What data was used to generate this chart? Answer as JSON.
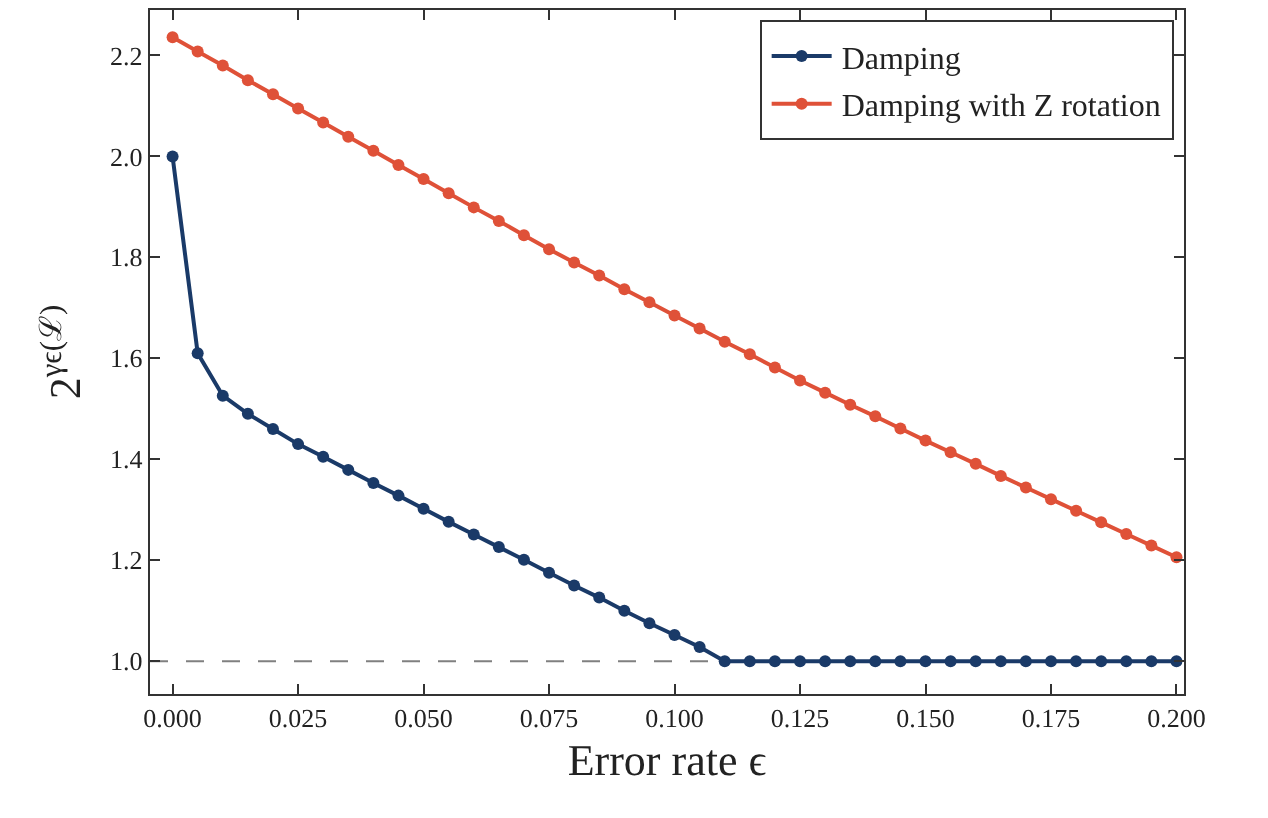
{
  "chart_data": {
    "type": "line",
    "xlabel": "Error rate ϵ",
    "ylabel": "2$^{γϵ(ℒ)}$",
    "x": [
      0,
      0.005,
      0.01,
      0.015,
      0.02,
      0.025,
      0.03,
      0.035,
      0.04,
      0.045,
      0.05,
      0.055,
      0.06,
      0.065,
      0.07,
      0.075,
      0.08,
      0.085,
      0.09,
      0.095,
      0.1,
      0.105,
      0.11,
      0.115,
      0.12,
      0.125,
      0.13,
      0.135,
      0.14,
      0.145,
      0.15,
      0.155,
      0.16,
      0.165,
      0.17,
      0.175,
      0.18,
      0.185,
      0.19,
      0.195,
      0.2
    ],
    "series": [
      {
        "name": "Damping",
        "color": "#1a3a68",
        "values": [
          2.0,
          1.61,
          1.526,
          1.49,
          1.46,
          1.43,
          1.405,
          1.379,
          1.353,
          1.328,
          1.302,
          1.276,
          1.251,
          1.226,
          1.201,
          1.175,
          1.15,
          1.126,
          1.1,
          1.075,
          1.052,
          1.028,
          1.0,
          1.0,
          1.0,
          1.0,
          1.0,
          1.0,
          1.0,
          1.0,
          1.0,
          1.0,
          1.0,
          1.0,
          1.0,
          1.0,
          1.0,
          1.0,
          1.0,
          1.0,
          1.0
        ]
      },
      {
        "name": "Damping with Z rotation",
        "color": "#df5138",
        "values": [
          2.236,
          2.208,
          2.18,
          2.151,
          2.123,
          2.095,
          2.067,
          2.039,
          2.011,
          1.983,
          1.955,
          1.927,
          1.899,
          1.872,
          1.844,
          1.816,
          1.79,
          1.764,
          1.737,
          1.711,
          1.685,
          1.659,
          1.633,
          1.608,
          1.582,
          1.556,
          1.532,
          1.508,
          1.485,
          1.461,
          1.437,
          1.414,
          1.391,
          1.367,
          1.344,
          1.321,
          1.298,
          1.275,
          1.252,
          1.229,
          1.206
        ]
      }
    ],
    "xlim": [
      -0.0045,
      0.2015
    ],
    "ylim": [
      0.935,
      2.29
    ],
    "xticks": [
      {
        "value": 0,
        "label": "0.000"
      },
      {
        "value": 0.025,
        "label": "0.025"
      },
      {
        "value": 0.05,
        "label": "0.050"
      },
      {
        "value": 0.075,
        "label": "0.075"
      },
      {
        "value": 0.1,
        "label": "0.100"
      },
      {
        "value": 0.125,
        "label": "0.125"
      },
      {
        "value": 0.15,
        "label": "0.150"
      },
      {
        "value": 0.175,
        "label": "0.175"
      },
      {
        "value": 0.2,
        "label": "0.200"
      }
    ],
    "yticks": [
      {
        "value": 1,
        "label": "1.0"
      },
      {
        "value": 1.2,
        "label": "1.2"
      },
      {
        "value": 1.4,
        "label": "1.4"
      },
      {
        "value": 1.6,
        "label": "1.6"
      },
      {
        "value": 1.8,
        "label": "1.8"
      },
      {
        "value": 2,
        "label": "2.0"
      },
      {
        "value": 2.2,
        "label": "2.2"
      }
    ],
    "ref_lines": [
      {
        "axis": "y",
        "value": 1,
        "color": "#808080",
        "line_style": "dashed"
      }
    ],
    "legend": "top right",
    "marker": "circle",
    "line_style": "solid",
    "grid": false
  }
}
